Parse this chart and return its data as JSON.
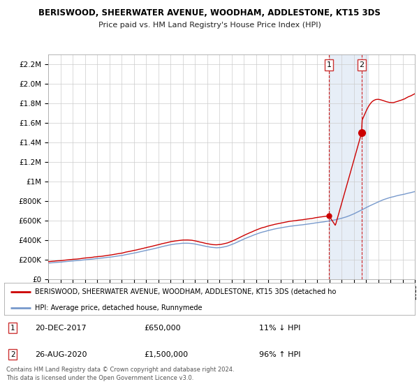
{
  "title": "BERISWOOD, SHEERWATER AVENUE, WOODHAM, ADDLESTONE, KT15 3DS",
  "subtitle": "Price paid vs. HM Land Registry's House Price Index (HPI)",
  "legend_line1": "BERISWOOD, SHEERWATER AVENUE, WOODHAM, ADDLESTONE, KT15 3DS (detached ho",
  "legend_line2": "HPI: Average price, detached house, Runnymede",
  "annotation1_date": "20-DEC-2017",
  "annotation1_price": "£650,000",
  "annotation1_hpi": "11% ↓ HPI",
  "annotation2_date": "26-AUG-2020",
  "annotation2_price": "£1,500,000",
  "annotation2_hpi": "96% ↑ HPI",
  "footer": "Contains HM Land Registry data © Crown copyright and database right 2024.\nThis data is licensed under the Open Government Licence v3.0.",
  "red_color": "#cc0000",
  "blue_color": "#7799cc",
  "shade_color": "#dde8f5",
  "background_color": "#ffffff",
  "ylim": [
    0,
    2300000
  ],
  "yticks": [
    0,
    200000,
    400000,
    600000,
    800000,
    1000000,
    1200000,
    1400000,
    1600000,
    1800000,
    2000000,
    2200000
  ],
  "point1_x": 2017.97,
  "point1_y": 650000,
  "point2_x": 2020.66,
  "point2_y": 1500000,
  "shade_xmin": 2017.97,
  "shade_xmax": 2021.2,
  "xmin": 1995,
  "xmax": 2025
}
